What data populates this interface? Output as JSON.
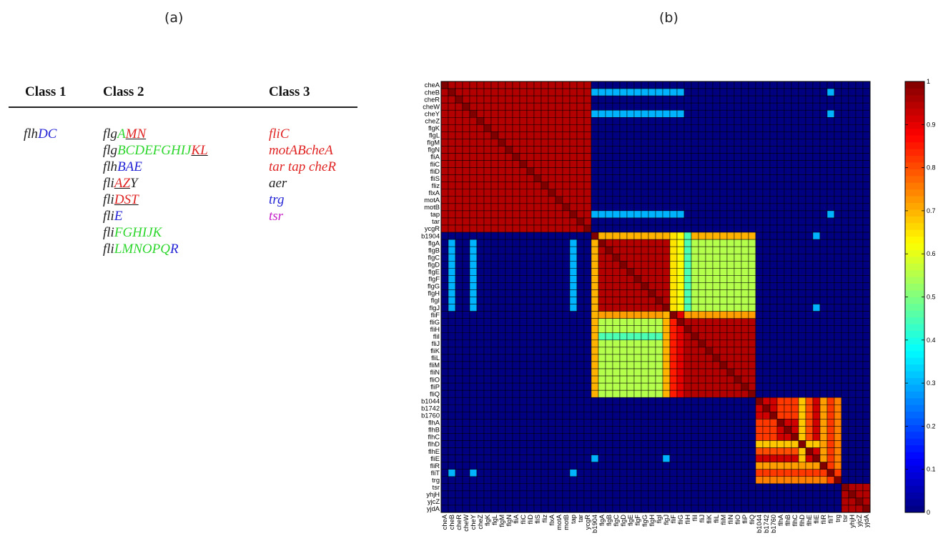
{
  "panels": {
    "a": "(a)",
    "b": "(b)"
  },
  "table": {
    "headers": [
      "Class 1",
      "Class 2",
      "Class 3"
    ],
    "class1": [
      [
        {
          "t": "flh",
          "c": "#222222"
        },
        {
          "t": "DC",
          "c": "#2323d6"
        }
      ]
    ],
    "class2": [
      [
        {
          "t": "flg",
          "c": "#222222"
        },
        {
          "t": "A",
          "c": "#2ed62e"
        },
        {
          "t": "MN",
          "c": "#e02424",
          "u": true
        }
      ],
      [
        {
          "t": "flg",
          "c": "#222222"
        },
        {
          "t": "BCDEFGHIJ",
          "c": "#2ed62e"
        },
        {
          "t": "KL",
          "c": "#e02424",
          "u": true
        }
      ],
      [
        {
          "t": "flh",
          "c": "#222222"
        },
        {
          "t": "BAE",
          "c": "#2323d6"
        }
      ],
      [
        {
          "t": "fli",
          "c": "#222222"
        },
        {
          "t": "AZ",
          "c": "#e02424",
          "u": true
        },
        {
          "t": "Y",
          "c": "#222222"
        }
      ],
      [
        {
          "t": "fli",
          "c": "#222222"
        },
        {
          "t": "DST",
          "c": "#e02424",
          "u": true
        }
      ],
      [
        {
          "t": "fli",
          "c": "#222222"
        },
        {
          "t": "E",
          "c": "#2323d6"
        }
      ],
      [
        {
          "t": "fli",
          "c": "#222222"
        },
        {
          "t": "FGHIJK",
          "c": "#2ed62e"
        }
      ],
      [
        {
          "t": "fli",
          "c": "#222222"
        },
        {
          "t": "LMNOPQ",
          "c": "#2ed62e"
        },
        {
          "t": "R",
          "c": "#2323d6"
        }
      ]
    ],
    "class3": [
      [
        {
          "t": "fliC",
          "c": "#e02424"
        }
      ],
      [
        {
          "t": "motABcheA",
          "c": "#e02424"
        }
      ],
      [
        {
          "t": "tar tap cheR",
          "c": "#e02424"
        }
      ],
      [
        {
          "t": "aer",
          "c": "#222222"
        }
      ],
      [
        {
          "t": "trg",
          "c": "#2323d6"
        }
      ],
      [
        {
          "t": "tsr",
          "c": "#c81ec8"
        }
      ]
    ]
  },
  "chart_data": {
    "type": "heatmap",
    "colormap": "jet",
    "clim": [
      0,
      1
    ],
    "colorbar_ticks": [
      "0",
      "0.1",
      "0.2",
      "0.3",
      "0.4",
      "0.5",
      "0.6",
      "0.7",
      "0.8",
      "0.9",
      "1"
    ],
    "row_labels": [
      "cheA",
      "cheB",
      "cheR",
      "cheW",
      "cheY",
      "cheZ",
      "flgK",
      "flgL",
      "flgM",
      "flgN",
      "fliA",
      "fliC",
      "fliD",
      "fliS",
      "fliz",
      "flxA",
      "motA",
      "motB",
      "tap",
      "tar",
      "ycgR",
      "b1904",
      "flgA",
      "flgB",
      "flgC",
      "flgD",
      "flgE",
      "flgF",
      "flgG",
      "flgH",
      "flgI",
      "flgJ",
      "fliF",
      "fliG",
      "fliH",
      "fliI",
      "fliJ",
      "fliK",
      "fliL",
      "fliM",
      "fliN",
      "fliO",
      "fliP",
      "fliQ",
      "b1044",
      "b1742",
      "b1760",
      "flhA",
      "flhB",
      "flhC",
      "flhD",
      "flhE",
      "fliE",
      "fliR",
      "fliT",
      "trg",
      "tsr",
      "yhjH",
      "yjcZ",
      "yjdA"
    ],
    "col_labels": [
      "cheA",
      "cheB",
      "cheR",
      "cheW",
      "cheY",
      "cheZ",
      "flgK",
      "flgL",
      "flgM",
      "flgN",
      "fliA",
      "fliC",
      "fliD",
      "fliS",
      "fliz",
      "flxA",
      "motA",
      "motB",
      "tap",
      "tar",
      "ycgR",
      "b1904",
      "flgA",
      "flgB",
      "flgC",
      "flgD",
      "flgE",
      "flgF",
      "flgG",
      "flgH",
      "flgI",
      "flgJ",
      "fliF",
      "fliG",
      "fliH",
      "fliI",
      "fliJ",
      "fliK",
      "fliL",
      "fliM",
      "fliN",
      "fliO",
      "fliP",
      "fliQ",
      "b1044",
      "b1742",
      "b1760",
      "flhA",
      "flhB",
      "flhC",
      "flhD",
      "flhE",
      "fliE",
      "fliR",
      "fliT",
      "trg",
      "tsr",
      "yhjH",
      "yjcZ",
      "yjdA"
    ],
    "blocks": [
      {
        "rows": [
          0,
          20
        ],
        "cols": [
          0,
          20
        ],
        "value": 0.95
      },
      {
        "rows": [
          21,
          31
        ],
        "cols": [
          21,
          31
        ],
        "value": 0.95
      },
      {
        "rows": [
          32,
          43
        ],
        "cols": [
          32,
          43
        ],
        "value": 0.95
      },
      {
        "rows": [
          21,
          31
        ],
        "cols": [
          32,
          43
        ],
        "value": 0.55
      },
      {
        "rows": [
          32,
          43
        ],
        "cols": [
          21,
          31
        ],
        "value": 0.55
      },
      {
        "rows": [
          44,
          55
        ],
        "cols": [
          44,
          55
        ],
        "value": 0.92
      },
      {
        "rows": [
          56,
          59
        ],
        "cols": [
          56,
          59
        ],
        "value": 0.95
      }
    ],
    "rows_fill": [
      {
        "rows": [
          21
        ],
        "cols": [
          22,
          43
        ],
        "value": 0.7
      },
      {
        "rows": [
          32
        ],
        "cols": [
          22,
          43
        ],
        "value": 0.72
      }
    ],
    "cols_fill": [
      {
        "cols": [
          21
        ],
        "rows": [
          22,
          43
        ],
        "value": 0.7
      },
      {
        "cols": [
          32
        ],
        "rows": [
          22,
          43
        ],
        "value": 0.72
      }
    ],
    "cells": [
      {
        "r": 1,
        "c": [
          21,
          31
        ],
        "v": 0.3
      },
      {
        "r": 1,
        "c": [
          32,
          33
        ],
        "v": 0.3
      },
      {
        "r": 1,
        "c": [
          54
        ],
        "v": 0.3
      },
      {
        "r": 4,
        "c": [
          21,
          31
        ],
        "v": 0.3
      },
      {
        "r": 4,
        "c": [
          32,
          33
        ],
        "v": 0.3
      },
      {
        "r": 4,
        "c": [
          54
        ],
        "v": 0.3
      },
      {
        "r": 18,
        "c": [
          21,
          31
        ],
        "v": 0.3
      },
      {
        "r": 18,
        "c": [
          32,
          33
        ],
        "v": 0.3
      },
      {
        "r": 18,
        "c": [
          54
        ],
        "v": 0.3
      },
      {
        "r": [
          22,
          31
        ],
        "c": [
          1
        ],
        "v": 0.3
      },
      {
        "r": [
          22,
          31
        ],
        "c": [
          4
        ],
        "v": 0.3
      },
      {
        "r": [
          22,
          31
        ],
        "c": [
          18
        ],
        "v": 0.3
      },
      {
        "r": 21,
        "c": [
          52
        ],
        "v": 0.3
      },
      {
        "r": 31,
        "c": [
          52
        ],
        "v": 0.3
      },
      {
        "r": 52,
        "c": [
          21
        ],
        "v": 0.3
      },
      {
        "r": 52,
        "c": [
          31
        ],
        "v": 0.3
      },
      {
        "r": 54,
        "c": [
          1
        ],
        "v": 0.3
      },
      {
        "r": 54,
        "c": [
          4
        ],
        "v": 0.3
      },
      {
        "r": 54,
        "c": [
          18
        ],
        "v": 0.3
      },
      {
        "r": [
          21,
          31
        ],
        "c": [
          34
        ],
        "v": 0.45
      },
      {
        "r": 35,
        "c": [
          22,
          31
        ],
        "v": 0.45
      },
      {
        "r": [
          21,
          31
        ],
        "c": [
          32
        ],
        "v": 0.65
      },
      {
        "r": [
          32,
          43
        ],
        "c": [
          31
        ],
        "v": 0.7
      },
      {
        "r": [
          21,
          31
        ],
        "c": [
          33
        ],
        "v": 0.62
      },
      {
        "r": [
          32,
          43
        ],
        "c": [
          32
        ],
        "v": 0.85
      },
      {
        "r": [
          32,
          43
        ],
        "c": [
          33
        ],
        "v": 0.9
      }
    ],
    "cells2": [
      {
        "r": [
          44,
          55
        ],
        "c": [
          50
        ],
        "v": 0.68
      },
      {
        "r": 50,
        "c": [
          44,
          55
        ],
        "v": 0.68
      },
      {
        "r": [
          44,
          55
        ],
        "c": [
          53
        ],
        "v": 0.72
      },
      {
        "r": 53,
        "c": [
          44,
          55
        ],
        "v": 0.72
      },
      {
        "r": [
          44,
          55
        ],
        "c": [
          55
        ],
        "v": 0.75
      },
      {
        "r": 55,
        "c": [
          44,
          55
        ],
        "v": 0.75
      },
      {
        "r": [
          44,
          55
        ],
        "c": [
          54
        ],
        "v": 0.82
      },
      {
        "r": 54,
        "c": [
          44,
          55
        ],
        "v": 0.82
      },
      {
        "r": [
          44,
          46
        ],
        "c": [
          47,
          49
        ],
        "v": 0.82
      },
      {
        "r": [
          47,
          49
        ],
        "c": [
          44,
          46
        ],
        "v": 0.82
      },
      {
        "r": 51,
        "c": [
          44,
          49
        ],
        "v": 0.8
      },
      {
        "r": [
          44,
          49
        ],
        "c": [
          51
        ],
        "v": 0.8
      }
    ]
  }
}
